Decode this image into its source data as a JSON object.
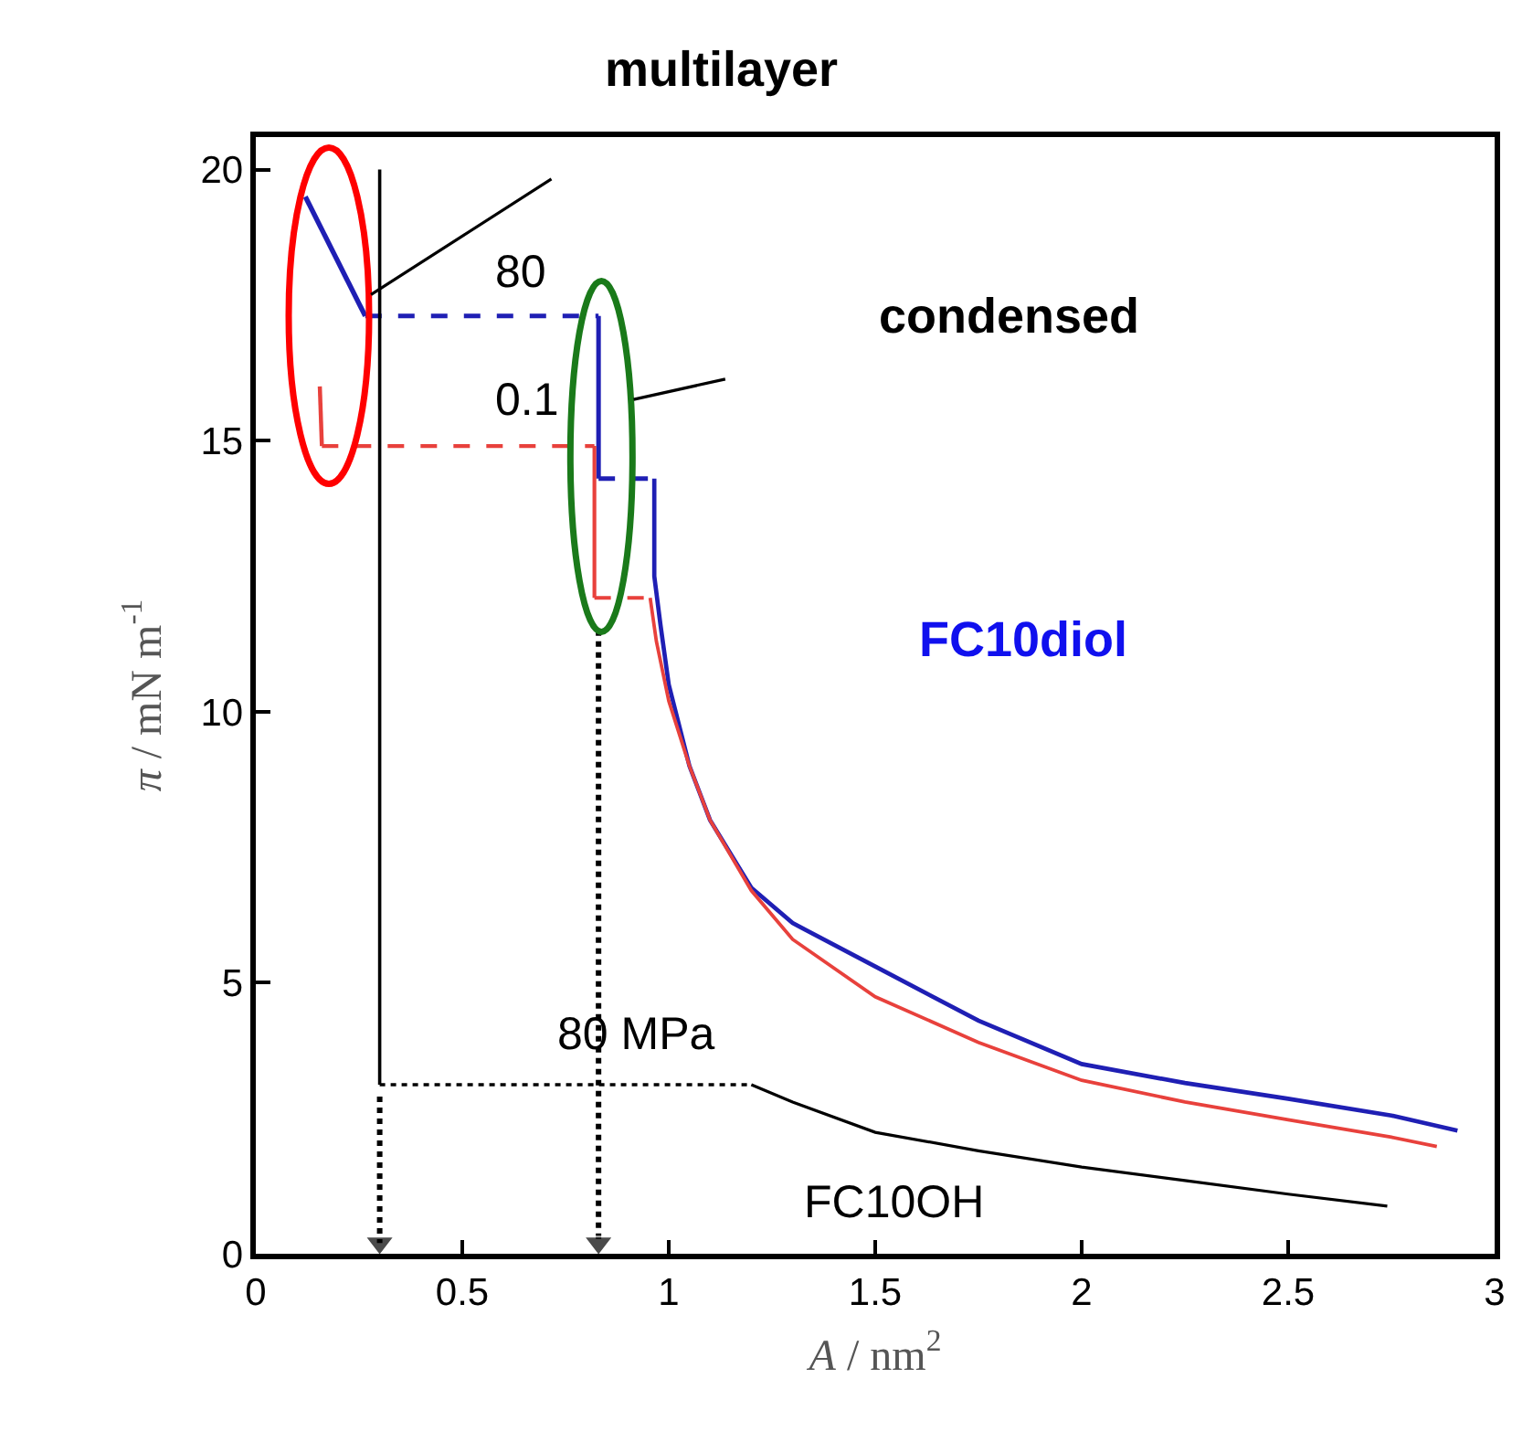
{
  "chart_data": {
    "type": "line",
    "xlabel": "A / nm$^{2}$",
    "ylabel": "π / mN m$^{-1}$",
    "xlim": [
      0,
      3
    ],
    "ylim": [
      0,
      20.6
    ],
    "xticks": [
      0,
      0.5,
      1,
      1.5,
      2,
      2.5,
      3
    ],
    "yticks": [
      0,
      5,
      10,
      15,
      20
    ],
    "marker": "none",
    "series": [
      {
        "color": "#1f1fb4",
        "line_style": "solid",
        "x": [
          0.12,
          0.265
        ],
        "values": [
          19.5,
          17.3
        ]
      },
      {
        "color": "#1f1fb4",
        "line_style": "dashed",
        "x": [
          0.265,
          0.83
        ],
        "values": [
          17.3,
          17.3
        ]
      },
      {
        "color": "#1f1fb4",
        "line_style": "solid",
        "x": [
          0.83,
          0.83
        ],
        "values": [
          17.3,
          14.3
        ]
      },
      {
        "color": "#1f1fb4",
        "line_style": "dashed",
        "x": [
          0.83,
          0.965
        ],
        "values": [
          14.3,
          14.3
        ]
      },
      {
        "color": "#1f1fb4",
        "line_style": "solid",
        "x": [
          0.965,
          0.965,
          0.98,
          1.0,
          1.05,
          1.1,
          1.2,
          1.3,
          1.5,
          1.75,
          2.0,
          2.25,
          2.5,
          2.75,
          2.91
        ],
        "values": [
          14.3,
          12.5,
          11.6,
          10.5,
          9.0,
          8.0,
          6.75,
          6.1,
          5.3,
          4.3,
          3.5,
          3.15,
          2.86,
          2.55,
          2.27
        ]
      },
      {
        "color": "#e8413c",
        "line_style": "solid",
        "x": [
          0.155,
          0.16
        ],
        "values": [
          16.0,
          14.9
        ]
      },
      {
        "color": "#e8413c",
        "line_style": "dashed",
        "x": [
          0.16,
          0.82
        ],
        "values": [
          14.9,
          14.9
        ]
      },
      {
        "color": "#e8413c",
        "line_style": "solid",
        "x": [
          0.82,
          0.82
        ],
        "values": [
          14.9,
          12.1
        ]
      },
      {
        "color": "#e8413c",
        "line_style": "dashed",
        "x": [
          0.82,
          0.955
        ],
        "values": [
          12.1,
          12.1
        ]
      },
      {
        "color": "#e8413c",
        "line_style": "solid",
        "x": [
          0.955,
          0.97,
          1.0,
          1.05,
          1.1,
          1.2,
          1.3,
          1.5,
          1.75,
          2.0,
          2.25,
          2.5,
          2.75,
          2.86
        ],
        "values": [
          12.1,
          11.3,
          10.2,
          9.0,
          8.0,
          6.7,
          5.8,
          4.74,
          3.9,
          3.2,
          2.8,
          2.47,
          2.15,
          1.98
        ]
      },
      {
        "color": "#000000",
        "line_style": "solid",
        "x": [
          0.3,
          0.3
        ],
        "values": [
          20.0,
          3.12
        ]
      },
      {
        "color": "#000000",
        "line_style": "dotted",
        "x": [
          0.3,
          1.2
        ],
        "values": [
          3.12,
          3.12
        ]
      },
      {
        "color": "#000000",
        "line_style": "solid",
        "x": [
          1.2,
          1.3,
          1.5,
          1.75,
          2.0,
          2.25,
          2.5,
          2.74
        ],
        "values": [
          3.12,
          2.8,
          2.24,
          1.9,
          1.6,
          1.35,
          1.1,
          0.88
        ]
      },
      {
        "color": "#000000",
        "line_style": "dotted",
        "marker": "triangle",
        "x": [
          0.3,
          0.3
        ],
        "values": [
          2.9,
          0.2
        ]
      },
      {
        "color": "#000000",
        "line_style": "dotted",
        "marker": "triangle",
        "x": [
          0.83,
          0.83
        ],
        "values": [
          11.5,
          0.2
        ]
      }
    ],
    "annotations": [
      "multilayer",
      "condensed",
      "80",
      "0.1",
      "FC10diol",
      "80 MPa",
      "FC10OH"
    ]
  }
}
